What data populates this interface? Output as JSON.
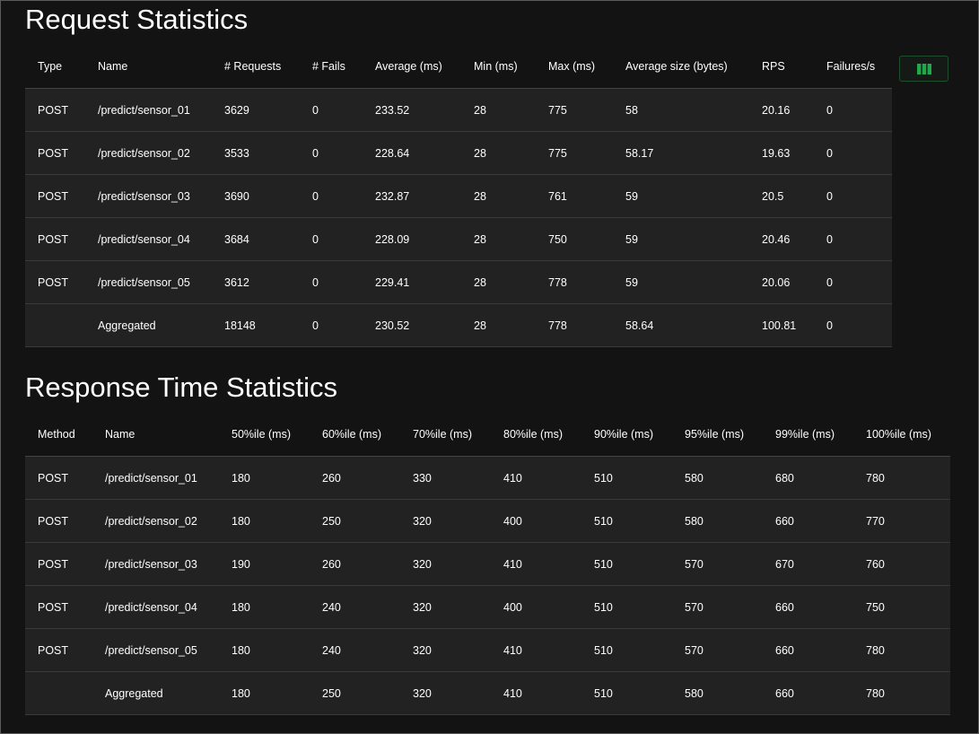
{
  "request_statistics": {
    "title": "Request Statistics",
    "columns": [
      "Type",
      "Name",
      "# Requests",
      "# Fails",
      "Average (ms)",
      "Min (ms)",
      "Max (ms)",
      "Average size (bytes)",
      "RPS",
      "Failures/s"
    ],
    "rows": [
      [
        "POST",
        "/predict/sensor_01",
        "3629",
        "0",
        "233.52",
        "28",
        "775",
        "58",
        "20.16",
        "0"
      ],
      [
        "POST",
        "/predict/sensor_02",
        "3533",
        "0",
        "228.64",
        "28",
        "775",
        "58.17",
        "19.63",
        "0"
      ],
      [
        "POST",
        "/predict/sensor_03",
        "3690",
        "0",
        "232.87",
        "28",
        "761",
        "59",
        "20.5",
        "0"
      ],
      [
        "POST",
        "/predict/sensor_04",
        "3684",
        "0",
        "228.09",
        "28",
        "750",
        "59",
        "20.46",
        "0"
      ],
      [
        "POST",
        "/predict/sensor_05",
        "3612",
        "0",
        "229.41",
        "28",
        "778",
        "59",
        "20.06",
        "0"
      ],
      [
        "",
        "Aggregated",
        "18148",
        "0",
        "230.52",
        "28",
        "778",
        "58.64",
        "100.81",
        "0"
      ]
    ]
  },
  "response_time_statistics": {
    "title": "Response Time Statistics",
    "columns": [
      "Method",
      "Name",
      "50%ile (ms)",
      "60%ile (ms)",
      "70%ile (ms)",
      "80%ile (ms)",
      "90%ile (ms)",
      "95%ile (ms)",
      "99%ile (ms)",
      "100%ile (ms)"
    ],
    "rows": [
      [
        "POST",
        "/predict/sensor_01",
        "180",
        "260",
        "330",
        "410",
        "510",
        "580",
        "680",
        "780"
      ],
      [
        "POST",
        "/predict/sensor_02",
        "180",
        "250",
        "320",
        "400",
        "510",
        "580",
        "660",
        "770"
      ],
      [
        "POST",
        "/predict/sensor_03",
        "190",
        "260",
        "320",
        "410",
        "510",
        "570",
        "670",
        "760"
      ],
      [
        "POST",
        "/predict/sensor_04",
        "180",
        "240",
        "320",
        "400",
        "510",
        "570",
        "660",
        "750"
      ],
      [
        "POST",
        "/predict/sensor_05",
        "180",
        "240",
        "320",
        "410",
        "510",
        "570",
        "660",
        "780"
      ],
      [
        "",
        "Aggregated",
        "180",
        "250",
        "320",
        "410",
        "510",
        "580",
        "660",
        "780"
      ]
    ]
  },
  "column_selector_button": {
    "icon": "columns-icon",
    "color": "#1fa94a"
  },
  "colors": {
    "background": "#131313",
    "row_background": "#222222",
    "accent": "#1fa94a"
  }
}
